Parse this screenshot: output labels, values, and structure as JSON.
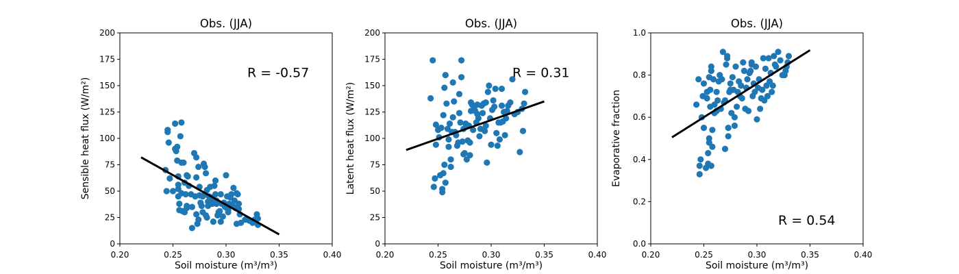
{
  "chart_data": [
    {
      "type": "scatter",
      "title": "Obs. (JJA)",
      "xlabel": "Soil moisture (m³/m³)",
      "ylabel": "Sensible heat flux (W/m²)",
      "xlim": [
        0.2,
        0.4
      ],
      "ylim": [
        0,
        200
      ],
      "xticks": [
        0.2,
        0.25,
        0.3,
        0.35,
        0.4
      ],
      "xtick_labels": [
        "0.20",
        "0.25",
        "0.30",
        "0.35",
        "0.40"
      ],
      "yticks": [
        0,
        25,
        50,
        75,
        100,
        125,
        150,
        175,
        200
      ],
      "ytick_labels": [
        "0",
        "25",
        "50",
        "75",
        "100",
        "125",
        "150",
        "175",
        "200"
      ],
      "annotation": {
        "text": "R = -0.57",
        "x": 0.32,
        "y": 162
      },
      "point_color": "#1f77b4",
      "fit_line": {
        "x": [
          0.22,
          0.35
        ],
        "y": [
          82,
          9
        ]
      },
      "points": [
        [
          0.243,
          70
        ],
        [
          0.244,
          50
        ],
        [
          0.245,
          106
        ],
        [
          0.245,
          108
        ],
        [
          0.246,
          96
        ],
        [
          0.247,
          62
        ],
        [
          0.25,
          50
        ],
        [
          0.252,
          114
        ],
        [
          0.252,
          90
        ],
        [
          0.253,
          88
        ],
        [
          0.254,
          92
        ],
        [
          0.254,
          79
        ],
        [
          0.255,
          64
        ],
        [
          0.255,
          56
        ],
        [
          0.255,
          52
        ],
        [
          0.255,
          45
        ],
        [
          0.256,
          38
        ],
        [
          0.256,
          32
        ],
        [
          0.257,
          102
        ],
        [
          0.258,
          115
        ],
        [
          0.258,
          77
        ],
        [
          0.258,
          48
        ],
        [
          0.259,
          31
        ],
        [
          0.26,
          77
        ],
        [
          0.261,
          30
        ],
        [
          0.261,
          58
        ],
        [
          0.262,
          47
        ],
        [
          0.263,
          36
        ],
        [
          0.263,
          34
        ],
        [
          0.263,
          65
        ],
        [
          0.264,
          64
        ],
        [
          0.265,
          55
        ],
        [
          0.267,
          47
        ],
        [
          0.268,
          35
        ],
        [
          0.268,
          15
        ],
        [
          0.27,
          86
        ],
        [
          0.271,
          45
        ],
        [
          0.272,
          82
        ],
        [
          0.272,
          63
        ],
        [
          0.272,
          28
        ],
        [
          0.273,
          19
        ],
        [
          0.274,
          23
        ],
        [
          0.274,
          73
        ],
        [
          0.275,
          54
        ],
        [
          0.275,
          46
        ],
        [
          0.276,
          39
        ],
        [
          0.277,
          36
        ],
        [
          0.278,
          30
        ],
        [
          0.278,
          45
        ],
        [
          0.279,
          76
        ],
        [
          0.28,
          73
        ],
        [
          0.28,
          47
        ],
        [
          0.281,
          67
        ],
        [
          0.281,
          27
        ],
        [
          0.282,
          51
        ],
        [
          0.282,
          25
        ],
        [
          0.283,
          40
        ],
        [
          0.283,
          36
        ],
        [
          0.284,
          45
        ],
        [
          0.285,
          43
        ],
        [
          0.285,
          54
        ],
        [
          0.286,
          40
        ],
        [
          0.287,
          38
        ],
        [
          0.287,
          44
        ],
        [
          0.288,
          21
        ],
        [
          0.289,
          55
        ],
        [
          0.29,
          60
        ],
        [
          0.29,
          47
        ],
        [
          0.291,
          41
        ],
        [
          0.291,
          38
        ],
        [
          0.292,
          27
        ],
        [
          0.293,
          30
        ],
        [
          0.294,
          31
        ],
        [
          0.295,
          21
        ],
        [
          0.295,
          47
        ],
        [
          0.296,
          38
        ],
        [
          0.297,
          26
        ],
        [
          0.298,
          39
        ],
        [
          0.299,
          35
        ],
        [
          0.3,
          65
        ],
        [
          0.301,
          45
        ],
        [
          0.302,
          30
        ],
        [
          0.302,
          32
        ],
        [
          0.303,
          38
        ],
        [
          0.304,
          44
        ],
        [
          0.305,
          47
        ],
        [
          0.306,
          37
        ],
        [
          0.307,
          53
        ],
        [
          0.308,
          41
        ],
        [
          0.309,
          34
        ],
        [
          0.31,
          19
        ],
        [
          0.31,
          48
        ],
        [
          0.311,
          47
        ],
        [
          0.312,
          38
        ],
        [
          0.312,
          33
        ],
        [
          0.313,
          28
        ],
        [
          0.314,
          20
        ],
        [
          0.318,
          23
        ],
        [
          0.32,
          23
        ],
        [
          0.322,
          22
        ],
        [
          0.325,
          20
        ],
        [
          0.327,
          23
        ],
        [
          0.329,
          28
        ],
        [
          0.33,
          24
        ],
        [
          0.33,
          18
        ]
      ]
    },
    {
      "type": "scatter",
      "title": "Obs. (JJA)",
      "xlabel": "Soil moisture (m³/m³)",
      "ylabel": "Latent heat flux (W/m²)",
      "xlim": [
        0.2,
        0.4
      ],
      "ylim": [
        0,
        200
      ],
      "xticks": [
        0.2,
        0.25,
        0.3,
        0.35,
        0.4
      ],
      "xtick_labels": [
        "0.20",
        "0.25",
        "0.30",
        "0.35",
        "0.40"
      ],
      "yticks": [
        0,
        25,
        50,
        75,
        100,
        125,
        150,
        175,
        200
      ],
      "ytick_labels": [
        "0",
        "25",
        "50",
        "75",
        "100",
        "125",
        "150",
        "175",
        "200"
      ],
      "annotation": {
        "text": "R = 0.31",
        "x": 0.32,
        "y": 162
      },
      "point_color": "#1f77b4",
      "fit_line": {
        "x": [
          0.22,
          0.35
        ],
        "y": [
          89,
          135
        ]
      },
      "points": [
        [
          0.243,
          138
        ],
        [
          0.245,
          174
        ],
        [
          0.246,
          54
        ],
        [
          0.247,
          62
        ],
        [
          0.248,
          94
        ],
        [
          0.248,
          113
        ],
        [
          0.25,
          108
        ],
        [
          0.251,
          101
        ],
        [
          0.252,
          65
        ],
        [
          0.253,
          110
        ],
        [
          0.254,
          52
        ],
        [
          0.254,
          49
        ],
        [
          0.255,
          67
        ],
        [
          0.255,
          122
        ],
        [
          0.256,
          148
        ],
        [
          0.256,
          75
        ],
        [
          0.257,
          160
        ],
        [
          0.257,
          58
        ],
        [
          0.258,
          133
        ],
        [
          0.259,
          109
        ],
        [
          0.26,
          99
        ],
        [
          0.26,
          92
        ],
        [
          0.261,
          114
        ],
        [
          0.262,
          80
        ],
        [
          0.262,
          73
        ],
        [
          0.263,
          106
        ],
        [
          0.264,
          120
        ],
        [
          0.264,
          153
        ],
        [
          0.265,
          135
        ],
        [
          0.266,
          106
        ],
        [
          0.267,
          103
        ],
        [
          0.268,
          93
        ],
        [
          0.269,
          96
        ],
        [
          0.27,
          124
        ],
        [
          0.27,
          142
        ],
        [
          0.271,
          115
        ],
        [
          0.272,
          174
        ],
        [
          0.272,
          158
        ],
        [
          0.273,
          97
        ],
        [
          0.274,
          85
        ],
        [
          0.274,
          109
        ],
        [
          0.275,
          86
        ],
        [
          0.276,
          114
        ],
        [
          0.277,
          80
        ],
        [
          0.278,
          98
        ],
        [
          0.279,
          112
        ],
        [
          0.28,
          96
        ],
        [
          0.28,
          84
        ],
        [
          0.281,
          126
        ],
        [
          0.281,
          134
        ],
        [
          0.282,
          132
        ],
        [
          0.283,
          108
        ],
        [
          0.284,
          128
        ],
        [
          0.285,
          126
        ],
        [
          0.286,
          115
        ],
        [
          0.287,
          123
        ],
        [
          0.287,
          132
        ],
        [
          0.288,
          119
        ],
        [
          0.289,
          102
        ],
        [
          0.29,
          109
        ],
        [
          0.291,
          131
        ],
        [
          0.292,
          124
        ],
        [
          0.293,
          133
        ],
        [
          0.294,
          107
        ],
        [
          0.295,
          112
        ],
        [
          0.295,
          134
        ],
        [
          0.296,
          77
        ],
        [
          0.297,
          144
        ],
        [
          0.298,
          150
        ],
        [
          0.299,
          119
        ],
        [
          0.3,
          94
        ],
        [
          0.301,
          127
        ],
        [
          0.302,
          136
        ],
        [
          0.303,
          130
        ],
        [
          0.304,
          147
        ],
        [
          0.305,
          105
        ],
        [
          0.306,
          93
        ],
        [
          0.307,
          115
        ],
        [
          0.308,
          99
        ],
        [
          0.309,
          115
        ],
        [
          0.31,
          147
        ],
        [
          0.31,
          131
        ],
        [
          0.311,
          116
        ],
        [
          0.312,
          125
        ],
        [
          0.313,
          103
        ],
        [
          0.314,
          119
        ],
        [
          0.315,
          126
        ],
        [
          0.316,
          131
        ],
        [
          0.318,
          134
        ],
        [
          0.32,
          156
        ],
        [
          0.322,
          123
        ],
        [
          0.325,
          125
        ],
        [
          0.327,
          87
        ],
        [
          0.329,
          128
        ],
        [
          0.33,
          107
        ],
        [
          0.331,
          133
        ],
        [
          0.332,
          144
        ]
      ]
    },
    {
      "type": "scatter",
      "title": "Obs. (JJA)",
      "xlabel": "Soil moisture (m³/m³)",
      "ylabel": "Evaporative fraction",
      "xlim": [
        0.2,
        0.4
      ],
      "ylim": [
        0.0,
        1.0
      ],
      "xticks": [
        0.2,
        0.25,
        0.3,
        0.35,
        0.4
      ],
      "xtick_labels": [
        "0.20",
        "0.25",
        "0.30",
        "0.35",
        "0.40"
      ],
      "yticks": [
        0.0,
        0.2,
        0.4,
        0.6,
        0.8,
        1.0
      ],
      "ytick_labels": [
        "0.0",
        "0.2",
        "0.4",
        "0.6",
        "0.8",
        "1.0"
      ],
      "annotation": {
        "text": "R = 0.54",
        "x": 0.32,
        "y": 0.11
      },
      "point_color": "#1f77b4",
      "fit_line": {
        "x": [
          0.22,
          0.35
        ],
        "y": [
          0.505,
          0.918
        ]
      },
      "points": [
        [
          0.243,
          0.66
        ],
        [
          0.245,
          0.78
        ],
        [
          0.246,
          0.37
        ],
        [
          0.246,
          0.33
        ],
        [
          0.247,
          0.4
        ],
        [
          0.248,
          0.6
        ],
        [
          0.249,
          0.7
        ],
        [
          0.25,
          0.55
        ],
        [
          0.25,
          0.76
        ],
        [
          0.252,
          0.36
        ],
        [
          0.253,
          0.69
        ],
        [
          0.253,
          0.72
        ],
        [
          0.254,
          0.38
        ],
        [
          0.254,
          0.43
        ],
        [
          0.255,
          0.48
        ],
        [
          0.255,
          0.5
        ],
        [
          0.255,
          0.79
        ],
        [
          0.256,
          0.65
        ],
        [
          0.256,
          0.73
        ],
        [
          0.257,
          0.82
        ],
        [
          0.257,
          0.84
        ],
        [
          0.257,
          0.37
        ],
        [
          0.258,
          0.54
        ],
        [
          0.258,
          0.46
        ],
        [
          0.259,
          0.78
        ],
        [
          0.26,
          0.62
        ],
        [
          0.26,
          0.66
        ],
        [
          0.262,
          0.63
        ],
        [
          0.262,
          0.72
        ],
        [
          0.263,
          0.68
        ],
        [
          0.264,
          0.77
        ],
        [
          0.265,
          0.8
        ],
        [
          0.266,
          0.64
        ],
        [
          0.267,
          0.78
        ],
        [
          0.268,
          0.91
        ],
        [
          0.269,
          0.67
        ],
        [
          0.27,
          0.45
        ],
        [
          0.27,
          0.68
        ],
        [
          0.271,
          0.85
        ],
        [
          0.272,
          0.89
        ],
        [
          0.272,
          0.88
        ],
        [
          0.273,
          0.55
        ],
        [
          0.273,
          0.51
        ],
        [
          0.274,
          0.72
        ],
        [
          0.275,
          0.76
        ],
        [
          0.275,
          0.73
        ],
        [
          0.276,
          0.62
        ],
        [
          0.277,
          0.79
        ],
        [
          0.278,
          0.73
        ],
        [
          0.279,
          0.6
        ],
        [
          0.279,
          0.56
        ],
        [
          0.28,
          0.84
        ],
        [
          0.281,
          0.65
        ],
        [
          0.282,
          0.72
        ],
        [
          0.283,
          0.77
        ],
        [
          0.284,
          0.7
        ],
        [
          0.285,
          0.75
        ],
        [
          0.286,
          0.69
        ],
        [
          0.287,
          0.86
        ],
        [
          0.288,
          0.82
        ],
        [
          0.289,
          0.64
        ],
        [
          0.29,
          0.74
        ],
        [
          0.291,
          0.78
        ],
        [
          0.292,
          0.63
        ],
        [
          0.293,
          0.81
        ],
        [
          0.294,
          0.82
        ],
        [
          0.295,
          0.86
        ],
        [
          0.295,
          0.85
        ],
        [
          0.296,
          0.7
        ],
        [
          0.297,
          0.76
        ],
        [
          0.298,
          0.72
        ],
        [
          0.299,
          0.84
        ],
        [
          0.3,
          0.59
        ],
        [
          0.301,
          0.74
        ],
        [
          0.302,
          0.78
        ],
        [
          0.303,
          0.64
        ],
        [
          0.304,
          0.69
        ],
        [
          0.305,
          0.73
        ],
        [
          0.306,
          0.88
        ],
        [
          0.307,
          0.68
        ],
        [
          0.308,
          0.83
        ],
        [
          0.309,
          0.75
        ],
        [
          0.31,
          0.7
        ],
        [
          0.311,
          0.88
        ],
        [
          0.312,
          0.77
        ],
        [
          0.313,
          0.81
        ],
        [
          0.314,
          0.72
        ],
        [
          0.315,
          0.75
        ],
        [
          0.316,
          0.89
        ],
        [
          0.317,
          0.85
        ],
        [
          0.318,
          0.84
        ],
        [
          0.32,
          0.91
        ],
        [
          0.322,
          0.87
        ],
        [
          0.324,
          0.8
        ],
        [
          0.326,
          0.8
        ],
        [
          0.327,
          0.82
        ],
        [
          0.328,
          0.84
        ],
        [
          0.329,
          0.86
        ],
        [
          0.33,
          0.89
        ]
      ]
    }
  ]
}
